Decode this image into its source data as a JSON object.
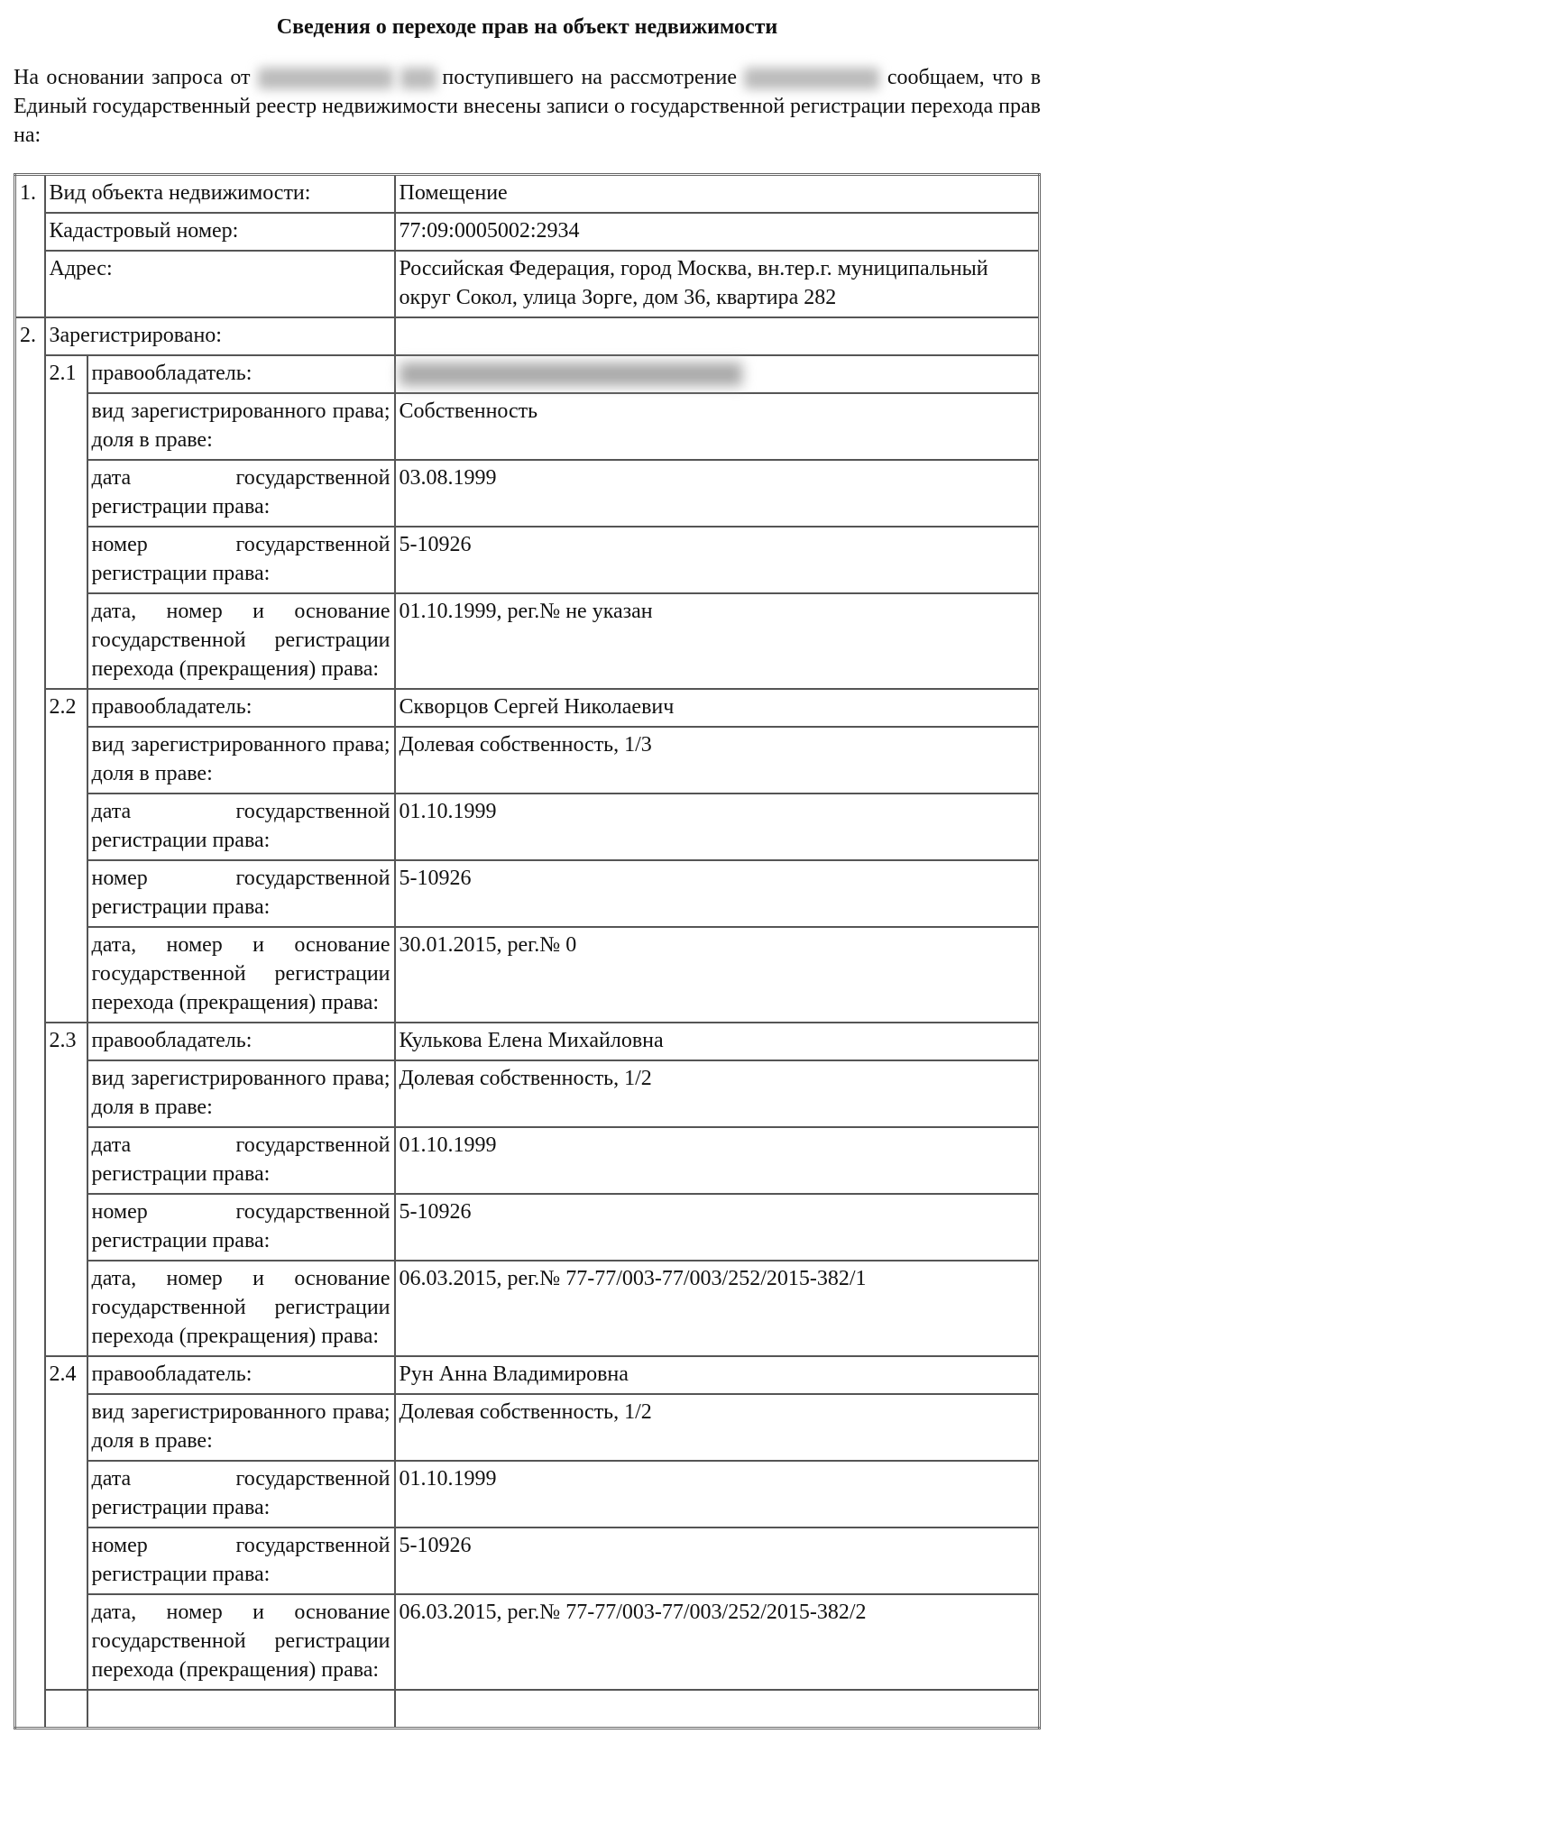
{
  "title": "Сведения о переходе прав на объект недвижимости",
  "intro": {
    "part1": "На основании запроса от",
    "part2": "поступившего на рассмотрение",
    "part3": "сообщаем, что в Единый государственный реестр недвижимости внесены записи о государственной регистрации перехода прав на:"
  },
  "object": {
    "number": "1.",
    "rows": [
      {
        "label": "Вид объекта недвижимости:",
        "value": "Помещение"
      },
      {
        "label": "Кадастровый номер:",
        "value": "77:09:0005002:2934"
      },
      {
        "label": "Адрес:",
        "value": "Российская Федерация, город Москва, вн.тер.г. муниципальный округ Сокол, улица Зорге, дом 36, квартира 282"
      }
    ]
  },
  "registered": {
    "number": "2.",
    "label": "Зарегистрировано:",
    "labels": {
      "holder": "правообладатель:",
      "right_type": "вид зарегистрированного права; доля в праве:",
      "reg_date": "дата государственной регистрации права:",
      "reg_number": "номер государственной регистрации права:",
      "transfer": "дата, номер и основание государственной регистрации перехода (прекращения) права:"
    },
    "holders": [
      {
        "num": "2.1",
        "name": "",
        "right_type": "Собственность",
        "reg_date": "03.08.1999",
        "reg_number": "5-10926",
        "transfer": "01.10.1999, рег.№ не указан"
      },
      {
        "num": "2.2",
        "name": "Скворцов Сергей Николаевич",
        "right_type": "Долевая собственность, 1/3",
        "reg_date": "01.10.1999",
        "reg_number": "5-10926",
        "transfer": "30.01.2015, рег.№ 0"
      },
      {
        "num": "2.3",
        "name": "Кулькова Елена Михайловна",
        "right_type": "Долевая собственность, 1/2",
        "reg_date": "01.10.1999",
        "reg_number": "5-10926",
        "transfer": "06.03.2015, рег.№ 77-77/003-77/003/252/2015-382/1"
      },
      {
        "num": "2.4",
        "name": "Рун Анна Владимировна",
        "right_type": "Долевая собственность, 1/2",
        "reg_date": "01.10.1999",
        "reg_number": "5-10926",
        "transfer": "06.03.2015, рег.№ 77-77/003-77/003/252/2015-382/2"
      }
    ]
  }
}
